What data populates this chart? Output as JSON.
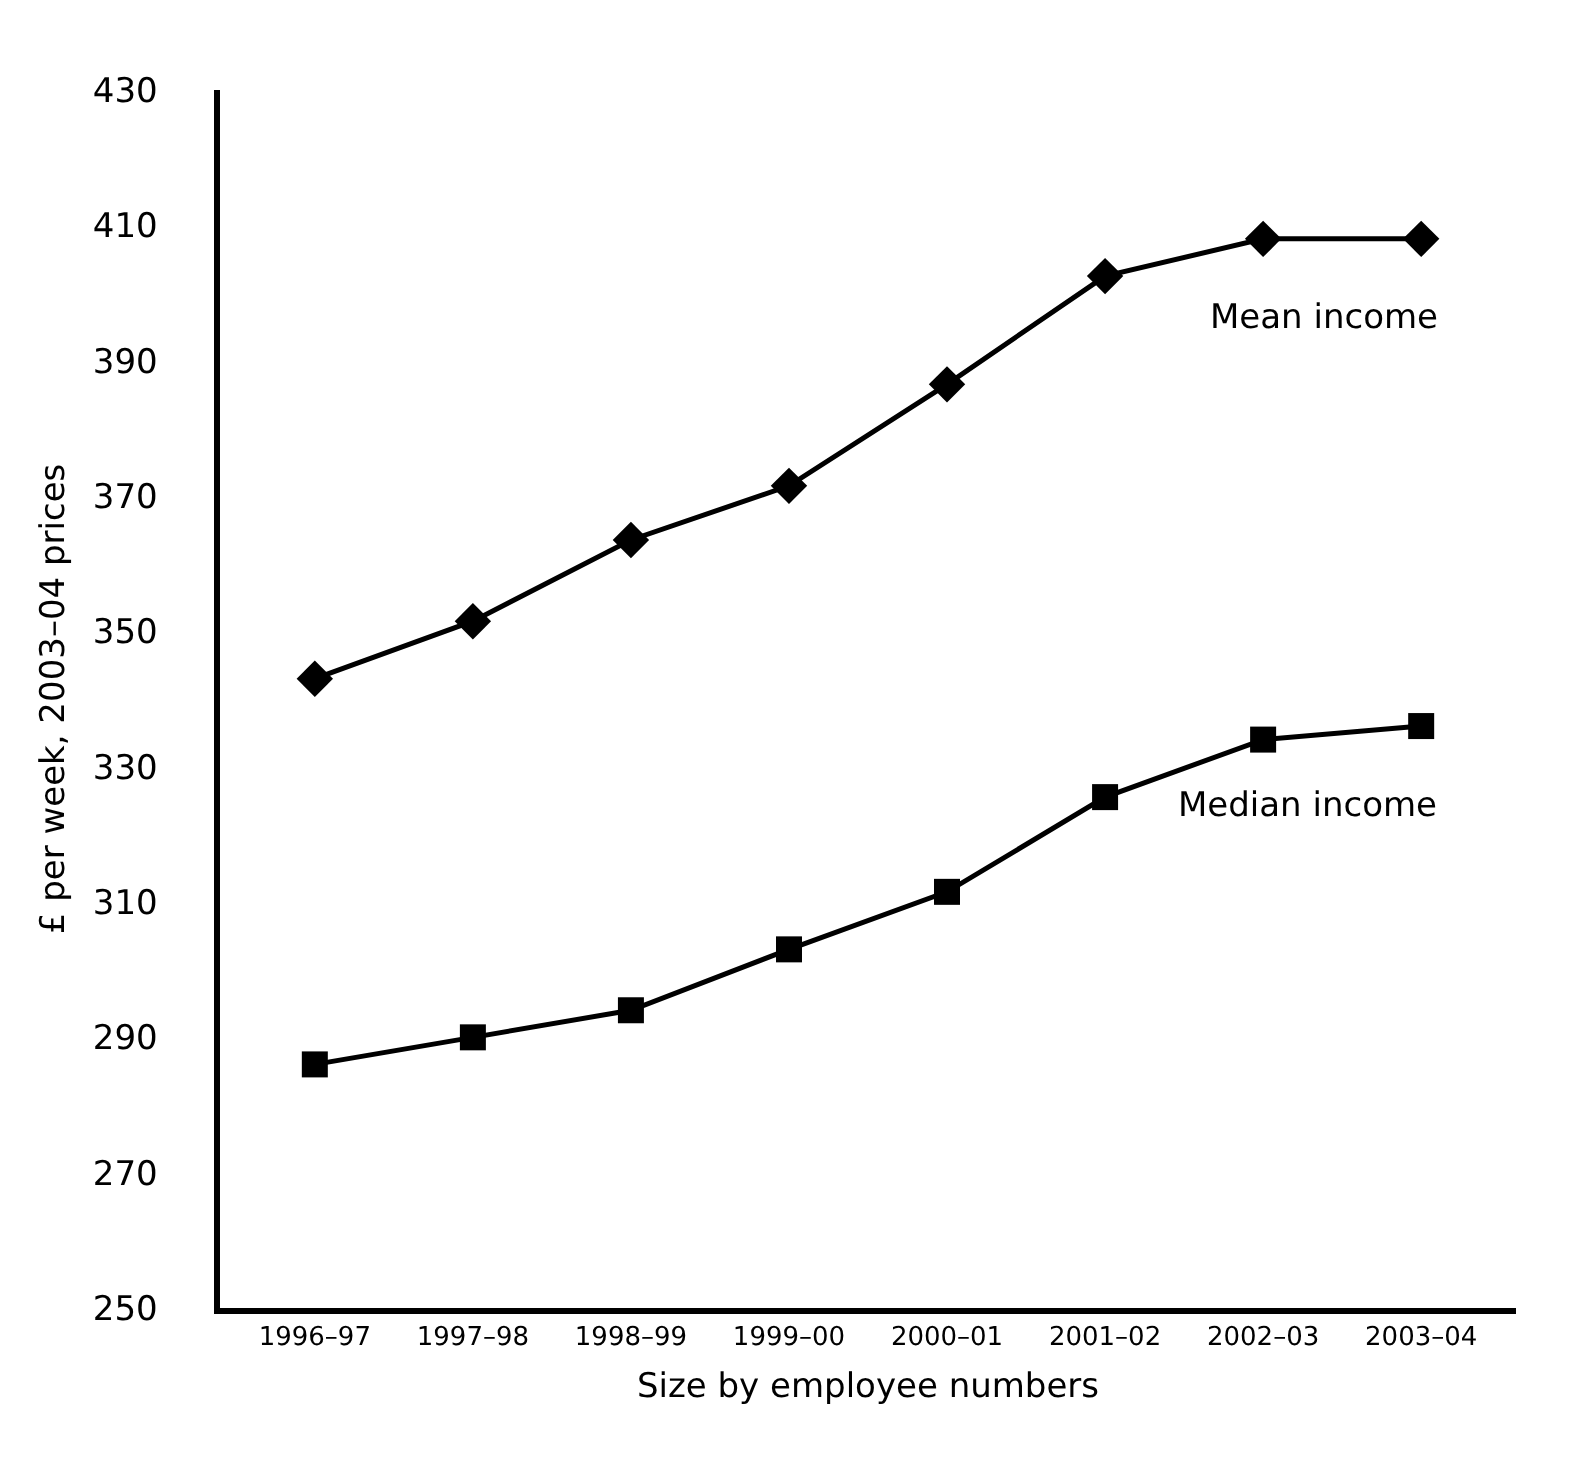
{
  "chart_data": {
    "type": "line",
    "xlabel": "Size by employee numbers",
    "ylabel": "£ per week, 2003–04 prices",
    "categories": [
      "1996–97",
      "1997–98",
      "1998–99",
      "1999–00",
      "2000–01",
      "2001–02",
      "2002–03",
      "2003–04"
    ],
    "series": [
      {
        "name": "Mean income",
        "color": "#000000",
        "marker": "diamond",
        "values": [
          343,
          351.5,
          363.5,
          371.5,
          386.5,
          402.5,
          408,
          408
        ]
      },
      {
        "name": "Median income",
        "color": "#000000",
        "marker": "square",
        "values": [
          286,
          290,
          294,
          303,
          311.5,
          325.5,
          334,
          336
        ]
      }
    ],
    "ylim": [
      250,
      430
    ],
    "yticks": [
      250,
      270,
      290,
      310,
      330,
      350,
      370,
      390,
      410,
      430
    ],
    "legend": false,
    "line_style": "solid"
  }
}
